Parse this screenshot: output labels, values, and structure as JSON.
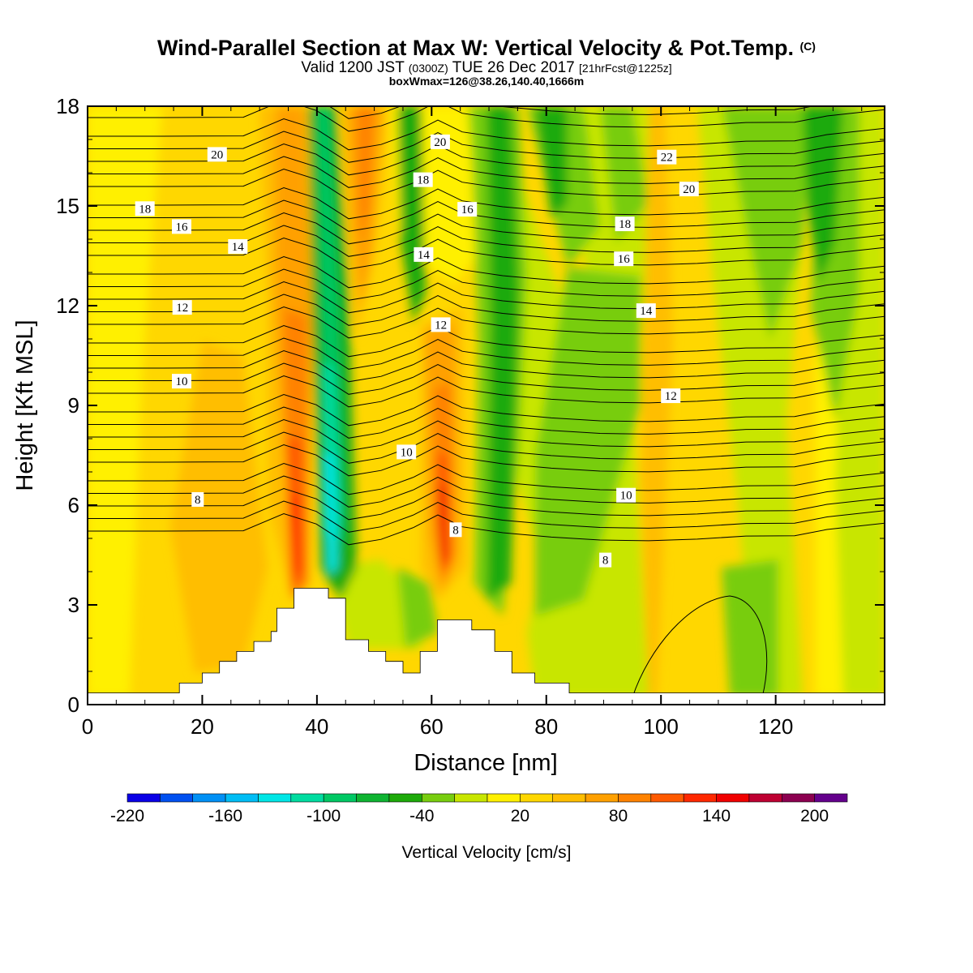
{
  "title": "Wind-Parallel Section at Max W: Vertical Velocity & Pot.Temp.",
  "title_mark": "(C)",
  "subtitle_main_a": "Valid 1200 JST",
  "subtitle_small_a": "(0300Z)",
  "subtitle_main_b": "TUE 26 Dec 2017",
  "subtitle_small_b": "[21hrFcst@1225z]",
  "subtitle2": "boxWmax=126@38.26,140.40,1666m",
  "chart_data": {
    "type": "heatmap",
    "xlabel": "Distance [nm]",
    "ylabel": "Height [Kft MSL]",
    "xlim": [
      0,
      139
    ],
    "ylim": [
      0,
      18
    ],
    "x_ticks": [
      0,
      20,
      40,
      60,
      80,
      100,
      120
    ],
    "y_ticks": [
      0,
      3,
      6,
      9,
      12,
      15,
      18
    ],
    "x_tick_labels": [
      "0",
      "20",
      "40",
      "60",
      "80",
      "100",
      "120"
    ],
    "y_tick_labels": [
      "0",
      "3",
      "6",
      "9",
      "12",
      "15",
      "18"
    ],
    "colorbar": {
      "title": "Vertical Velocity [cm/s]",
      "levels": [
        -220,
        -200,
        -180,
        -160,
        -140,
        -120,
        -100,
        -80,
        -60,
        -40,
        -20,
        0,
        20,
        40,
        60,
        80,
        100,
        120,
        140,
        160,
        180,
        200,
        220
      ],
      "colors": [
        "#0a00e6",
        "#0050f0",
        "#0090f5",
        "#00bdf5",
        "#00e6e6",
        "#00dca0",
        "#00c864",
        "#0fb432",
        "#1eaa0a",
        "#78cd0f",
        "#c8e600",
        "#fff000",
        "#ffd700",
        "#ffbe00",
        "#ffa000",
        "#ff8200",
        "#ff5a00",
        "#ff2800",
        "#f00000",
        "#be0032",
        "#8c0050",
        "#64008c"
      ],
      "tick_values": [
        -220,
        -160,
        -100,
        -40,
        20,
        80,
        140,
        200
      ],
      "tick_labels": [
        "-220",
        "-160",
        "-100",
        "-40",
        "20",
        "80",
        "140",
        "200"
      ]
    },
    "terrain": [
      [
        0,
        0.35
      ],
      [
        12,
        0.35
      ],
      [
        16,
        0.35
      ],
      [
        16,
        0.65
      ],
      [
        20,
        0.65
      ],
      [
        20,
        0.95
      ],
      [
        23,
        0.95
      ],
      [
        23,
        1.3
      ],
      [
        26,
        1.3
      ],
      [
        26,
        1.6
      ],
      [
        29,
        1.6
      ],
      [
        29,
        1.9
      ],
      [
        32,
        1.9
      ],
      [
        32,
        2.2
      ],
      [
        33,
        2.2
      ],
      [
        33,
        2.9
      ],
      [
        36,
        2.9
      ],
      [
        36,
        3.5
      ],
      [
        42,
        3.5
      ],
      [
        42,
        3.2
      ],
      [
        45,
        3.2
      ],
      [
        45,
        1.95
      ],
      [
        49,
        1.95
      ],
      [
        49,
        1.6
      ],
      [
        52,
        1.6
      ],
      [
        52,
        1.3
      ],
      [
        55,
        1.3
      ],
      [
        55,
        0.95
      ],
      [
        58,
        0.95
      ],
      [
        58,
        1.6
      ],
      [
        61,
        1.6
      ],
      [
        61,
        2.55
      ],
      [
        67,
        2.55
      ],
      [
        67,
        2.25
      ],
      [
        71,
        2.25
      ],
      [
        71,
        1.6
      ],
      [
        74,
        1.6
      ],
      [
        74,
        0.95
      ],
      [
        78,
        0.95
      ],
      [
        78,
        0.65
      ],
      [
        84,
        0.65
      ],
      [
        84,
        0.35
      ],
      [
        139,
        0.35
      ]
    ],
    "contour_labels": [
      {
        "text": "20",
        "x": 22.6,
        "y": 16.55
      },
      {
        "text": "18",
        "x": 10,
        "y": 14.92
      },
      {
        "text": "16",
        "x": 16.4,
        "y": 14.38
      },
      {
        "text": "14",
        "x": 26.2,
        "y": 13.78
      },
      {
        "text": "12",
        "x": 16.5,
        "y": 11.95
      },
      {
        "text": "10",
        "x": 16.4,
        "y": 9.73
      },
      {
        "text": "8",
        "x": 19.2,
        "y": 6.17
      },
      {
        "text": "20",
        "x": 61.5,
        "y": 16.93
      },
      {
        "text": "18",
        "x": 58.5,
        "y": 15.79
      },
      {
        "text": "16",
        "x": 66.2,
        "y": 14.9
      },
      {
        "text": "14",
        "x": 58.6,
        "y": 13.54
      },
      {
        "text": "12",
        "x": 61.6,
        "y": 11.43
      },
      {
        "text": "10",
        "x": 55.6,
        "y": 7.6
      },
      {
        "text": "8",
        "x": 64.2,
        "y": 5.26
      },
      {
        "text": "22",
        "x": 101,
        "y": 16.47
      },
      {
        "text": "20",
        "x": 104.9,
        "y": 15.51
      },
      {
        "text": "18",
        "x": 93.7,
        "y": 14.46
      },
      {
        "text": "16",
        "x": 93.5,
        "y": 13.41
      },
      {
        "text": "14",
        "x": 97.4,
        "y": 11.85
      },
      {
        "text": "12",
        "x": 101.7,
        "y": 9.29
      },
      {
        "text": "10",
        "x": 93.9,
        "y": 6.3
      },
      {
        "text": "8",
        "x": 90.3,
        "y": 4.35
      }
    ]
  }
}
